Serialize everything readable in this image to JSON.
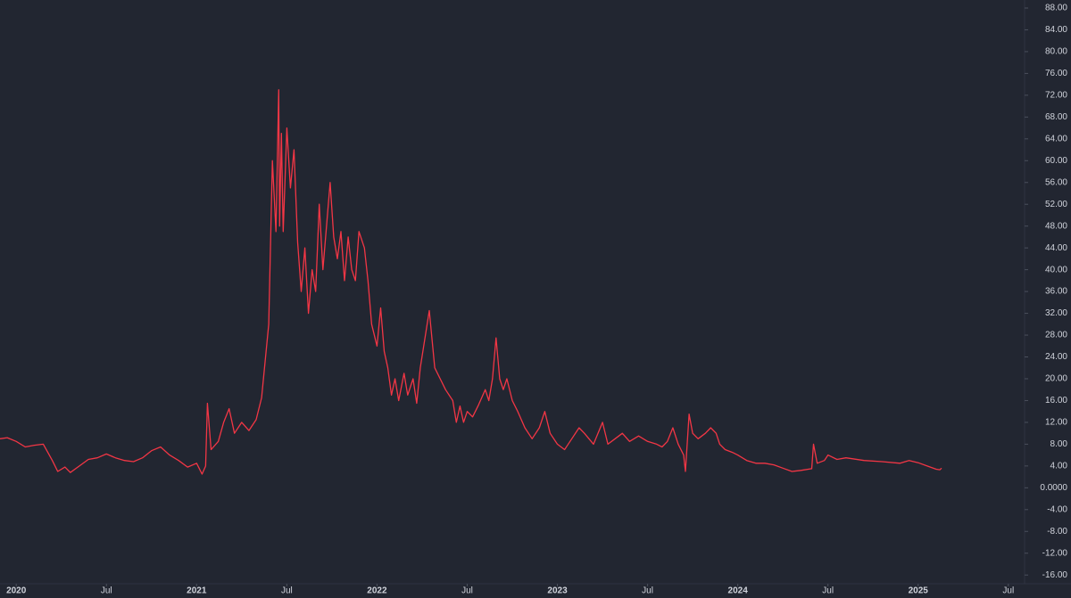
{
  "chart_data": {
    "type": "line",
    "xlim": [
      2019.91,
      2025.59
    ],
    "ylim": [
      -17.6,
      89.47
    ],
    "xticks": [
      {
        "value": 2020,
        "label": "2020"
      },
      {
        "value": 2020.5,
        "label": "Jul"
      },
      {
        "value": 2021,
        "label": "2021"
      },
      {
        "value": 2021.5,
        "label": "Jul"
      },
      {
        "value": 2022,
        "label": "2022"
      },
      {
        "value": 2022.5,
        "label": "Jul"
      },
      {
        "value": 2023,
        "label": "2023"
      },
      {
        "value": 2023.5,
        "label": "Jul"
      },
      {
        "value": 2024,
        "label": "2024"
      },
      {
        "value": 2024.5,
        "label": "Jul"
      },
      {
        "value": 2025,
        "label": "2025"
      },
      {
        "value": 2025.5,
        "label": "Jul"
      }
    ],
    "yticks": [
      {
        "value": 88,
        "label": "88.00"
      },
      {
        "value": 84,
        "label": "84.00"
      },
      {
        "value": 80,
        "label": "80.00"
      },
      {
        "value": 76,
        "label": "76.00"
      },
      {
        "value": 72,
        "label": "72.00"
      },
      {
        "value": 68,
        "label": "68.00"
      },
      {
        "value": 64,
        "label": "64.00"
      },
      {
        "value": 60,
        "label": "60.00"
      },
      {
        "value": 56,
        "label": "56.00"
      },
      {
        "value": 52,
        "label": "52.00"
      },
      {
        "value": 48,
        "label": "48.00"
      },
      {
        "value": 44,
        "label": "44.00"
      },
      {
        "value": 40,
        "label": "40.00"
      },
      {
        "value": 36,
        "label": "36.00"
      },
      {
        "value": 32,
        "label": "32.00"
      },
      {
        "value": 28,
        "label": "28.00"
      },
      {
        "value": 24,
        "label": "24.00"
      },
      {
        "value": 20,
        "label": "20.00"
      },
      {
        "value": 16,
        "label": "16.00"
      },
      {
        "value": 12,
        "label": "12.00"
      },
      {
        "value": 8,
        "label": "8.00"
      },
      {
        "value": 4,
        "label": "4.00"
      },
      {
        "value": 0,
        "label": "0.0000"
      },
      {
        "value": -4,
        "label": "-4.00"
      },
      {
        "value": -8,
        "label": "-8.00"
      },
      {
        "value": -12,
        "label": "-12.00"
      },
      {
        "value": -16,
        "label": "-16.00"
      }
    ],
    "series": [
      {
        "color": "#f23645",
        "x": [
          2019.91,
          2019.95,
          2020.0,
          2020.05,
          2020.1,
          2020.15,
          2020.2,
          2020.23,
          2020.27,
          2020.3,
          2020.35,
          2020.4,
          2020.45,
          2020.5,
          2020.55,
          2020.6,
          2020.65,
          2020.7,
          2020.75,
          2020.8,
          2020.85,
          2020.9,
          2020.95,
          2021.0,
          2021.03,
          2021.05,
          2021.06,
          2021.08,
          2021.12,
          2021.15,
          2021.18,
          2021.21,
          2021.25,
          2021.29,
          2021.33,
          2021.36,
          2021.4,
          2021.42,
          2021.44,
          2021.455,
          2021.46,
          2021.47,
          2021.48,
          2021.5,
          2021.52,
          2021.54,
          2021.56,
          2021.58,
          2021.6,
          2021.62,
          2021.64,
          2021.66,
          2021.68,
          2021.7,
          2021.74,
          2021.76,
          2021.78,
          2021.8,
          2021.82,
          2021.84,
          2021.86,
          2021.88,
          2021.9,
          2021.93,
          2021.95,
          2021.97,
          2022.0,
          2022.02,
          2022.04,
          2022.06,
          2022.08,
          2022.1,
          2022.12,
          2022.15,
          2022.17,
          2022.2,
          2022.22,
          2022.24,
          2022.29,
          2022.32,
          2022.35,
          2022.38,
          2022.42,
          2022.44,
          2022.46,
          2022.48,
          2022.5,
          2022.53,
          2022.56,
          2022.6,
          2022.62,
          2022.64,
          2022.66,
          2022.68,
          2022.7,
          2022.72,
          2022.75,
          2022.78,
          2022.82,
          2022.86,
          2022.9,
          2022.93,
          2022.96,
          2023.0,
          2023.04,
          2023.08,
          2023.12,
          2023.15,
          2023.2,
          2023.25,
          2023.28,
          2023.32,
          2023.36,
          2023.4,
          2023.45,
          2023.5,
          2023.55,
          2023.58,
          2023.61,
          2023.64,
          2023.67,
          2023.7,
          2023.71,
          2023.73,
          2023.75,
          2023.78,
          2023.82,
          2023.85,
          2023.88,
          2023.9,
          2023.93,
          2023.97,
          2024.0,
          2024.05,
          2024.1,
          2024.15,
          2024.2,
          2024.25,
          2024.3,
          2024.35,
          2024.41,
          2024.42,
          2024.44,
          2024.48,
          2024.5,
          2024.55,
          2024.6,
          2024.7,
          2024.8,
          2024.9,
          2024.95,
          2025.0,
          2025.05,
          2025.1,
          2025.12,
          2025.13
        ],
        "values": [
          9.0,
          9.2,
          8.5,
          7.5,
          7.8,
          8.0,
          5.0,
          3.0,
          3.8,
          2.8,
          4.0,
          5.2,
          5.5,
          6.2,
          5.5,
          5.0,
          4.8,
          5.5,
          6.8,
          7.5,
          6.0,
          5.0,
          3.8,
          4.5,
          2.5,
          4.0,
          15.5,
          7.0,
          8.5,
          12.0,
          14.5,
          10.0,
          12.0,
          10.5,
          12.5,
          16.5,
          30.0,
          60.0,
          47.0,
          73.0,
          48.0,
          65.0,
          47.0,
          66.0,
          55.0,
          62.0,
          45.0,
          36.0,
          44.0,
          32.0,
          40.0,
          36.0,
          52.0,
          40.0,
          56.0,
          46.0,
          42.0,
          47.0,
          38.0,
          46.0,
          40.0,
          38.0,
          47.0,
          44.0,
          38.0,
          30.0,
          26.0,
          33.0,
          25.0,
          22.0,
          17.0,
          20.0,
          16.0,
          21.0,
          17.0,
          20.0,
          15.5,
          22.0,
          32.5,
          22.0,
          20.0,
          18.0,
          16.0,
          12.0,
          15.0,
          12.0,
          14.0,
          13.0,
          15.0,
          18.0,
          16.0,
          20.0,
          27.5,
          20.0,
          18.0,
          20.0,
          16.0,
          14.0,
          11.0,
          9.0,
          11.0,
          14.0,
          10.0,
          8.0,
          7.0,
          9.0,
          11.0,
          10.0,
          8.0,
          12.0,
          8.0,
          9.0,
          10.0,
          8.5,
          9.5,
          8.5,
          8.0,
          7.5,
          8.5,
          11.0,
          8.0,
          6.0,
          3.0,
          13.5,
          10.0,
          9.0,
          10.0,
          11.0,
          10.0,
          8.0,
          7.0,
          6.5,
          6.0,
          5.0,
          4.5,
          4.5,
          4.2,
          3.6,
          3.0,
          3.2,
          3.5,
          8.0,
          4.5,
          5.0,
          6.0,
          5.2,
          5.5,
          5.0,
          4.8,
          4.5,
          5.0,
          4.6,
          4.0,
          3.4,
          3.3,
          3.6
        ]
      }
    ]
  }
}
